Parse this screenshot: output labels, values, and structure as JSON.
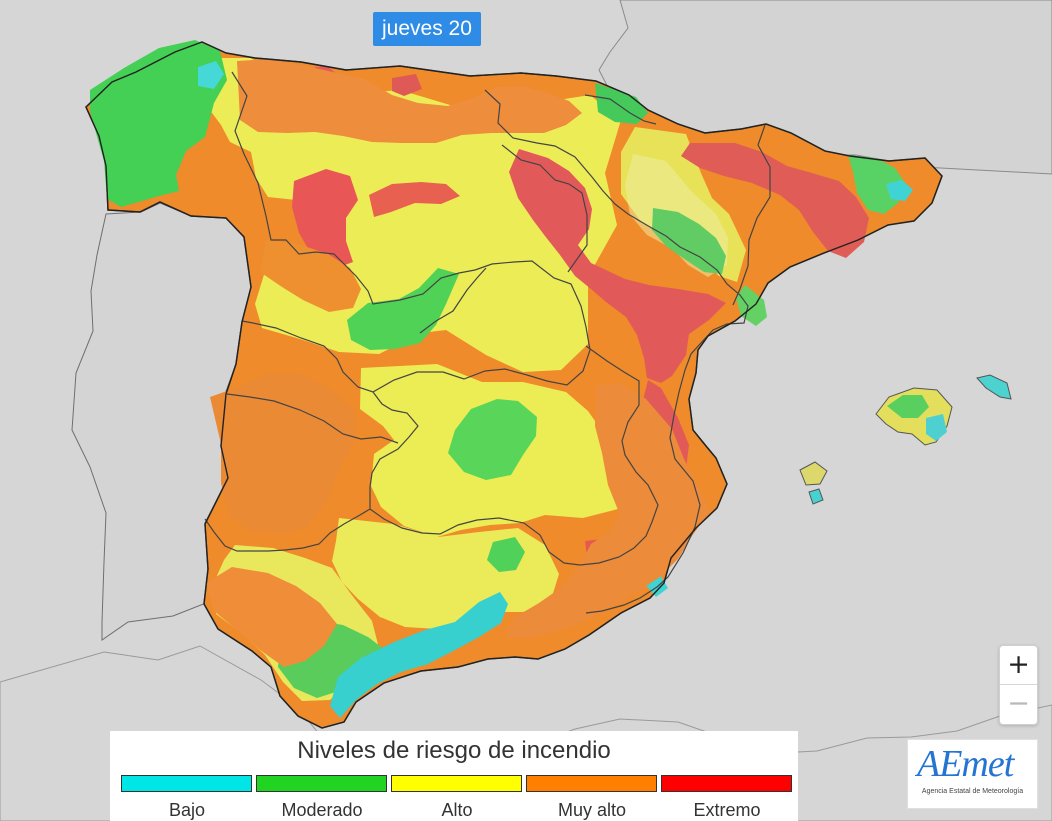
{
  "top_tab": {
    "label": "jueves 20"
  },
  "map": {
    "zoom_in_label": "+",
    "zoom_out_label": "−"
  },
  "legend": {
    "title": "Niveles de riesgo de incendio",
    "items": [
      {
        "label": "Bajo",
        "color": "#00e5e5"
      },
      {
        "label": "Moderado",
        "color": "#21d421"
      },
      {
        "label": "Alto",
        "color": "#ffff00"
      },
      {
        "label": "Muy alto",
        "color": "#ff7f00"
      },
      {
        "label": "Extremo",
        "color": "#ff0000"
      }
    ]
  },
  "logo": {
    "text": "AEmet",
    "subtitle": "Agencia Estatal de Meteorología"
  }
}
